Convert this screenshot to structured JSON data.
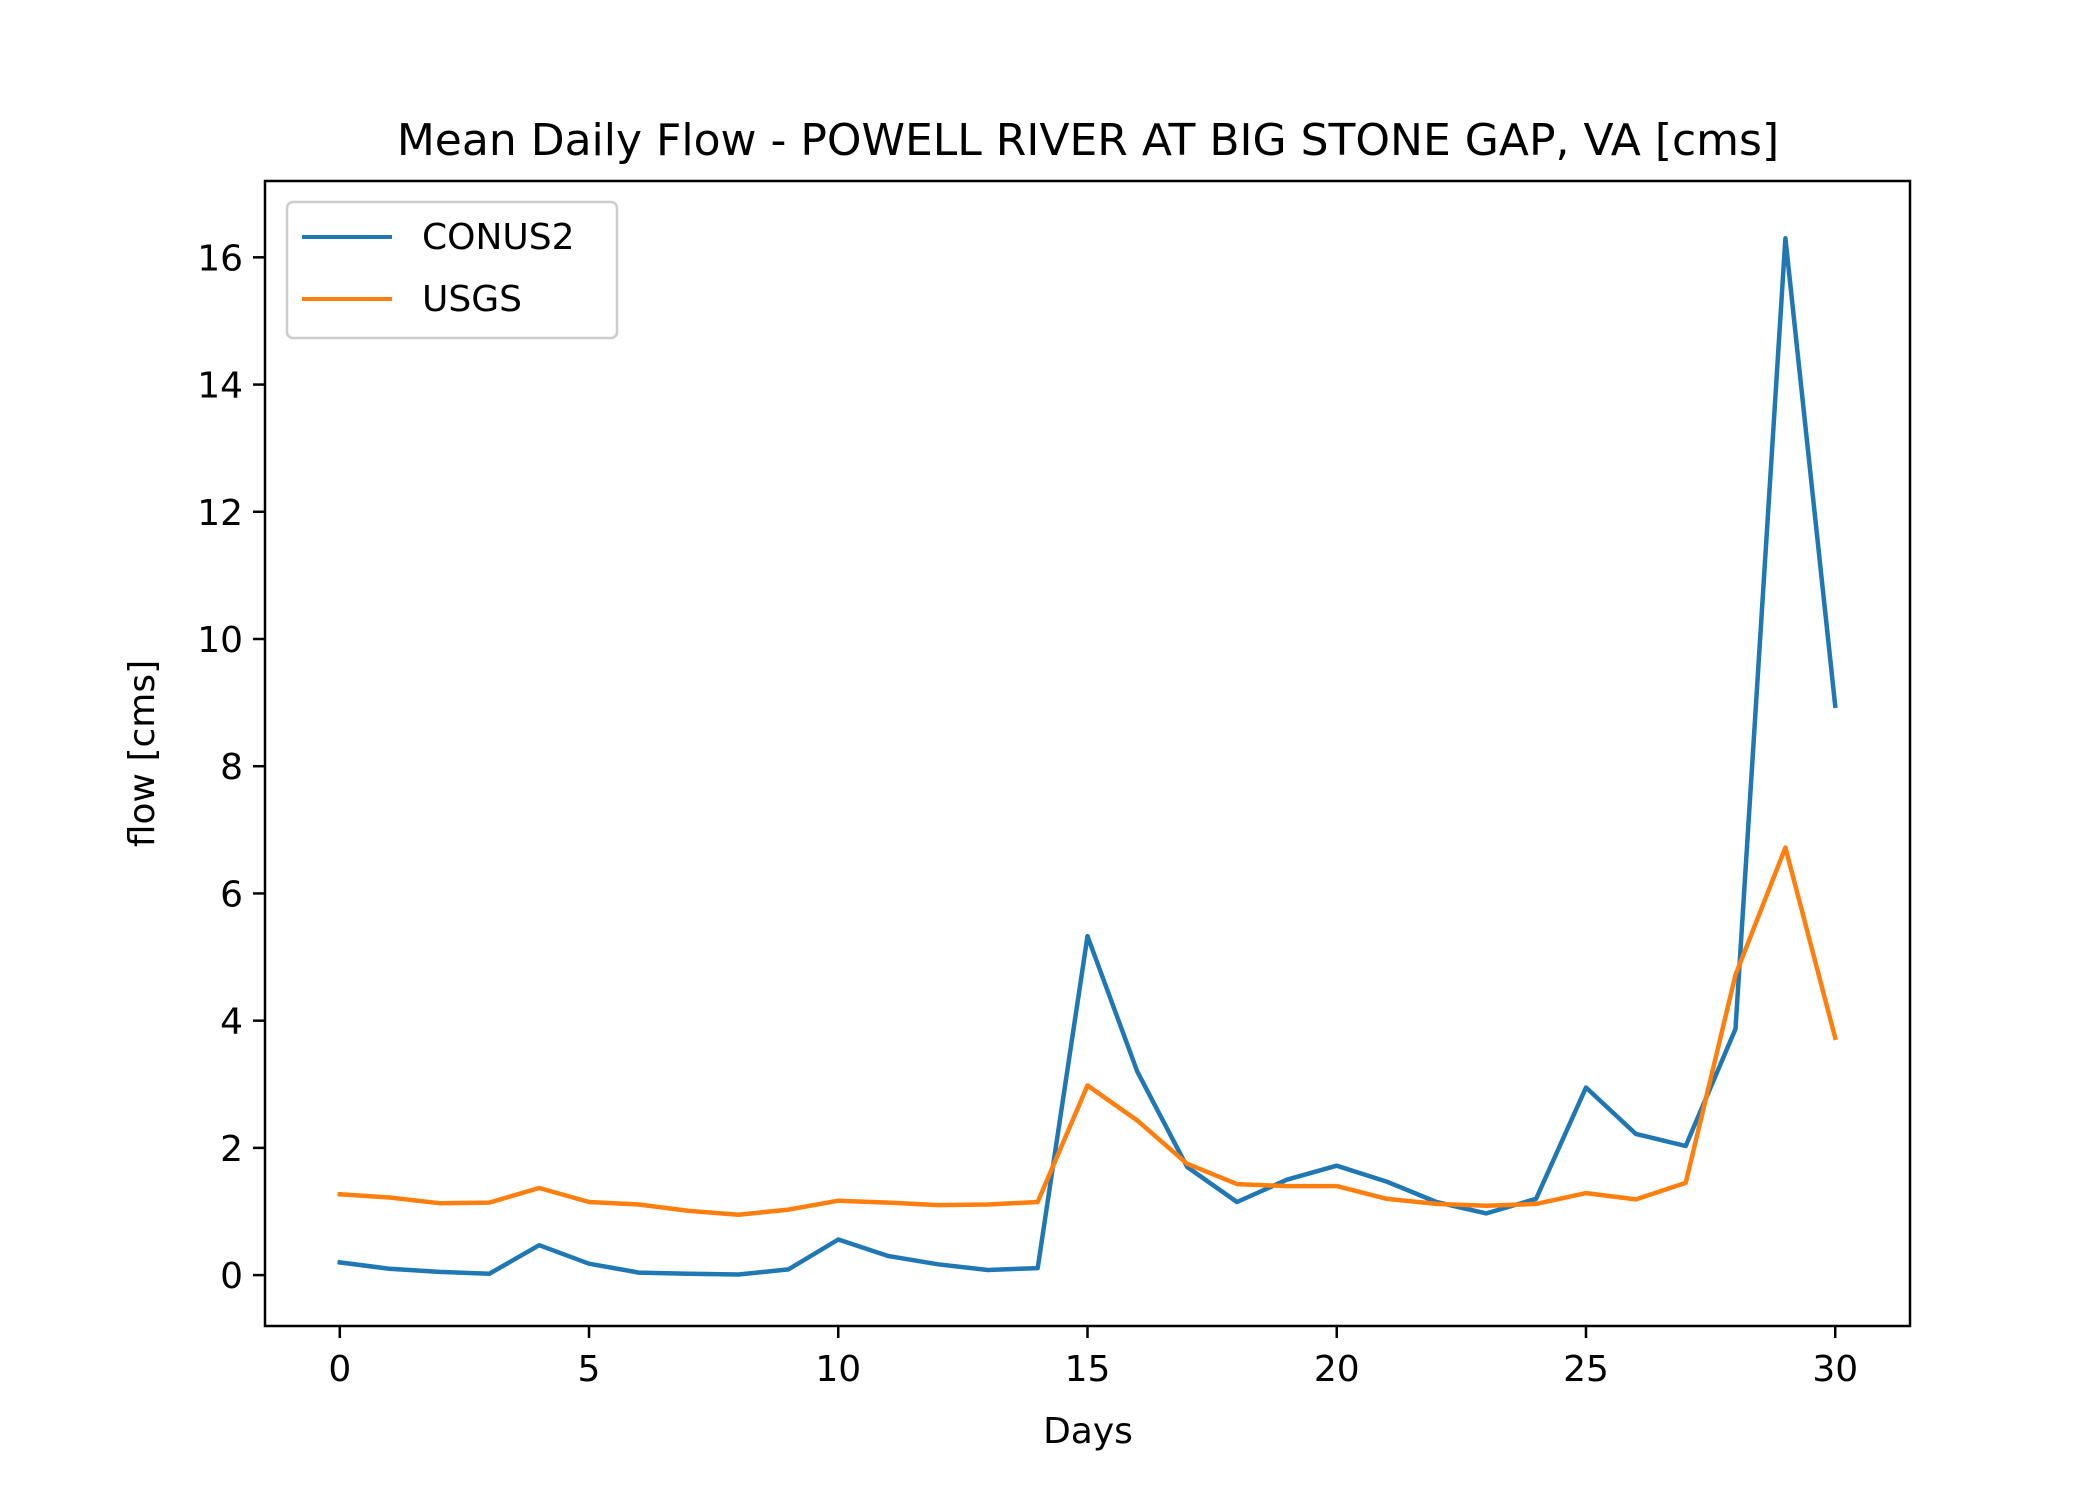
{
  "chart_data": {
    "type": "line",
    "title": "Mean Daily Flow - POWELL RIVER AT BIG STONE GAP, VA [cms]",
    "xlabel": "Days",
    "ylabel": "flow [cms]",
    "xlim": [
      -1.5,
      31.5
    ],
    "ylim": [
      -0.8,
      17.2
    ],
    "xticks": [
      0,
      5,
      10,
      15,
      20,
      25,
      30
    ],
    "yticks": [
      0,
      2,
      4,
      6,
      8,
      10,
      12,
      14,
      16
    ],
    "grid": false,
    "legend_position": "upper-left",
    "x": [
      0,
      1,
      2,
      3,
      4,
      5,
      6,
      7,
      8,
      9,
      10,
      11,
      12,
      13,
      14,
      15,
      16,
      17,
      18,
      19,
      20,
      21,
      22,
      23,
      24,
      25,
      26,
      27,
      28,
      29,
      30
    ],
    "series": [
      {
        "name": "CONUS2",
        "color": "#1f77b4",
        "values": [
          0.2,
          0.1,
          0.05,
          0.02,
          0.47,
          0.18,
          0.04,
          0.02,
          0.01,
          0.09,
          0.56,
          0.3,
          0.17,
          0.08,
          0.11,
          5.33,
          3.2,
          1.7,
          1.15,
          1.5,
          1.72,
          1.47,
          1.15,
          0.97,
          1.2,
          2.95,
          2.22,
          2.03,
          3.87,
          16.3,
          8.95
        ]
      },
      {
        "name": "USGS",
        "color": "#ff7f0e",
        "values": [
          1.27,
          1.22,
          1.13,
          1.14,
          1.37,
          1.15,
          1.11,
          1.01,
          0.95,
          1.03,
          1.17,
          1.14,
          1.1,
          1.11,
          1.15,
          2.98,
          2.43,
          1.75,
          1.43,
          1.4,
          1.4,
          1.2,
          1.12,
          1.09,
          1.12,
          1.29,
          1.19,
          1.45,
          4.72,
          6.72,
          3.73
        ]
      }
    ]
  }
}
